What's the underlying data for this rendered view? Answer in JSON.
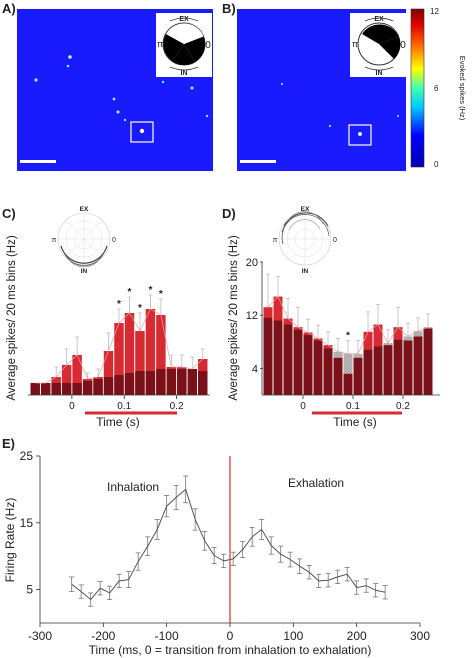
{
  "panels": {
    "A": {
      "label": "A)",
      "compass": {
        "top": "EX",
        "bottom": "IN",
        "left": "π",
        "right": "0"
      }
    },
    "B": {
      "label": "B)",
      "compass": {
        "top": "EX",
        "bottom": "IN",
        "left": "π",
        "right": "0"
      }
    },
    "colorbar": {
      "label": "Evoked spikes (Hz)",
      "ticks": [
        "12",
        "6",
        "0"
      ],
      "range": [
        0,
        12
      ]
    },
    "C": {
      "label": "C)",
      "polar": {
        "top": "EX",
        "bottom": "IN",
        "left": "π",
        "right": "0"
      }
    },
    "D": {
      "label": "D)",
      "polar": {
        "top": "EX",
        "bottom": "IN",
        "left": "π",
        "right": "0"
      }
    },
    "E": {
      "label": "E)",
      "annotations": [
        "Inhalation",
        "Exhalation"
      ]
    }
  },
  "colors": {
    "image_bg": "#1a1aff",
    "red_bar": "#d62b33",
    "dark_bar": "#7a1118",
    "line": "#555555",
    "transition": "#e03030"
  },
  "chart_data": [
    {
      "type": "bar",
      "panel": "C",
      "xlabel": "Time (s)",
      "ylabel": "Average spikes/ 20 ms bins (Hz)",
      "x": [
        -0.07,
        -0.05,
        -0.03,
        -0.01,
        0.01,
        0.03,
        0.05,
        0.07,
        0.09,
        0.11,
        0.13,
        0.15,
        0.17,
        0.19,
        0.21,
        0.23,
        0.25
      ],
      "xticks": [
        "0",
        "0.1",
        "0.2"
      ],
      "yticks": [],
      "ylim": [
        0,
        60
      ],
      "series": [
        {
          "values": [
            6,
            6,
            9,
            15,
            20,
            8,
            9,
            22,
            36,
            41,
            32,
            43,
            40,
            14,
            14,
            9,
            18
          ],
          "errors": [
            0,
            0,
            5,
            8,
            9,
            3,
            4,
            9,
            7,
            8,
            9,
            7,
            8,
            6,
            6,
            6,
            5
          ]
        },
        {
          "values": [
            6,
            6,
            6,
            6,
            6,
            7,
            8,
            9,
            10,
            11,
            12,
            12,
            13,
            13,
            13,
            13,
            12
          ]
        }
      ],
      "significance": [
        "*",
        "*",
        "*",
        "*",
        "*"
      ]
    },
    {
      "type": "bar",
      "panel": "D",
      "xlabel": "Time (s)",
      "ylabel": "Average spikes/ 20 ms bins (Hz)",
      "x": [
        -0.07,
        -0.05,
        -0.03,
        -0.01,
        0.01,
        0.03,
        0.05,
        0.07,
        0.09,
        0.11,
        0.13,
        0.15,
        0.17,
        0.19,
        0.21,
        0.23,
        0.25
      ],
      "xticks": [
        "0",
        "0.1",
        "0.2"
      ],
      "yticks": [
        "4",
        "12",
        "20"
      ],
      "ylim": [
        0,
        20
      ],
      "series": [
        {
          "values": [
            13.2,
            14.8,
            11.5,
            10.2,
            9.4,
            8.5,
            7.5,
            5.6,
            3.2,
            5.6,
            9.5,
            10.6,
            7.5,
            10.2,
            8.2,
            8.8,
            10.0
          ],
          "errors": [
            5,
            3,
            3,
            3,
            2,
            2,
            2,
            2,
            2,
            2,
            3,
            3,
            2,
            3,
            2,
            2,
            2
          ]
        },
        {
          "values": [
            11.6,
            11.2,
            10.6,
            9.8,
            9.0,
            8.2,
            7.0,
            6.5,
            6.2,
            6.2,
            6.8,
            7.3,
            7.8,
            8.3,
            8.8,
            9.6,
            10.2
          ]
        }
      ],
      "significance": [
        "*"
      ]
    },
    {
      "type": "line",
      "panel": "E",
      "xlabel": "Time (ms, 0 = transition from inhalation to exhalation)",
      "ylabel": "Firing Rate (Hz)",
      "xlim": [
        -300,
        300
      ],
      "ylim": [
        0,
        25
      ],
      "xticks": [
        "-300",
        "-200",
        "-100",
        "0",
        "100",
        "200",
        "300"
      ],
      "yticks": [
        "5",
        "15",
        "25"
      ],
      "x": [
        -250,
        -235,
        -220,
        -205,
        -190,
        -175,
        -160,
        -145,
        -130,
        -115,
        -100,
        -85,
        -70,
        -55,
        -40,
        -25,
        -10,
        5,
        20,
        35,
        50,
        65,
        80,
        95,
        110,
        125,
        140,
        155,
        170,
        185,
        200,
        215,
        230,
        245
      ],
      "y": [
        5.8,
        4.7,
        3.5,
        5.2,
        4.5,
        6.3,
        6.5,
        9.2,
        11.5,
        14.0,
        17.5,
        18.8,
        20.0,
        15.5,
        12.3,
        10.1,
        9.3,
        9.6,
        11.0,
        12.9,
        14.0,
        11.6,
        10.3,
        9.5,
        8.5,
        7.6,
        6.3,
        6.4,
        6.9,
        7.3,
        5.3,
        5.6,
        4.9,
        4.6
      ],
      "err": [
        1.1,
        1,
        1,
        1,
        1,
        1,
        1.2,
        1.3,
        1.4,
        1.5,
        1.6,
        1.8,
        2.0,
        1.6,
        1.4,
        1.2,
        1,
        1,
        1.2,
        1.4,
        1.5,
        1.3,
        1.2,
        1.1,
        1.1,
        1,
        1,
        1,
        1,
        1,
        1,
        1,
        1,
        1
      ],
      "transition_x": 0
    }
  ]
}
